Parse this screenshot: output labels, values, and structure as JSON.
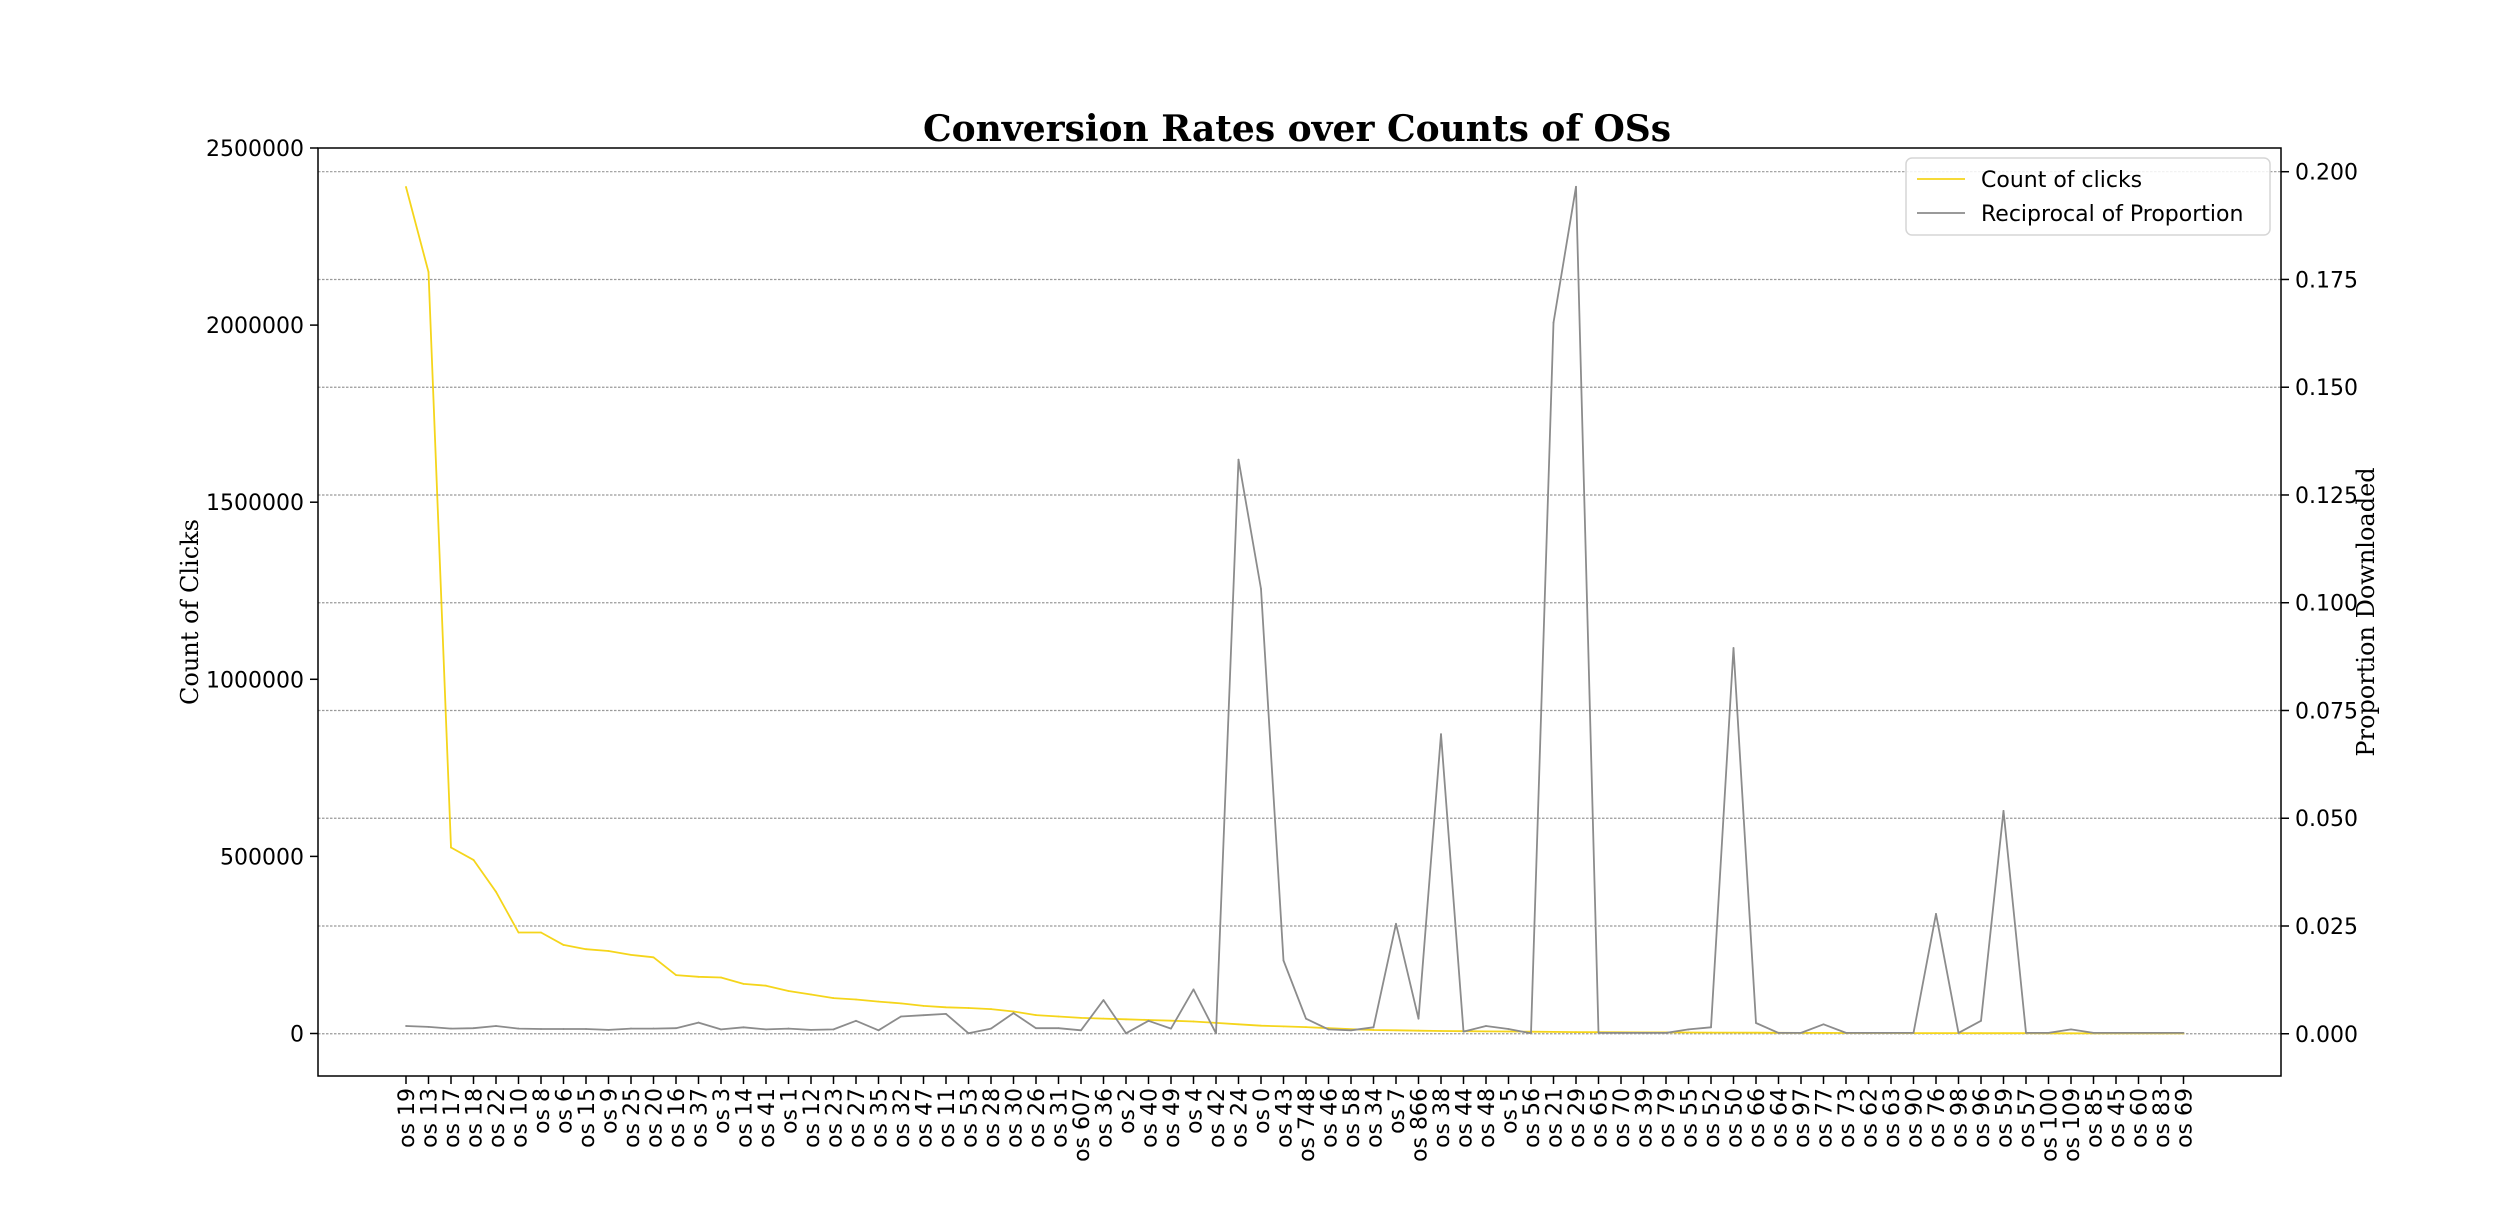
{
  "chart_data": {
    "type": "line",
    "title": "Conversion Rates over Counts of OSs",
    "xlabel": "",
    "ylabel": "Count of Clicks",
    "y2label": "Proportion Downloaded",
    "ylim": [
      -120000,
      2500000
    ],
    "y2lim": [
      -0.0098,
      0.2055
    ],
    "grid": "horizontal (right axis)",
    "legend_position": "top-right",
    "categories": [
      "os 19",
      "os 13",
      "os 17",
      "os 18",
      "os 22",
      "os 10",
      "os 8",
      "os 6",
      "os 15",
      "os 9",
      "os 25",
      "os 20",
      "os 16",
      "os 37",
      "os 3",
      "os 14",
      "os 41",
      "os 1",
      "os 12",
      "os 23",
      "os 27",
      "os 35",
      "os 32",
      "os 47",
      "os 11",
      "os 53",
      "os 28",
      "os 30",
      "os 26",
      "os 31",
      "os 607",
      "os 36",
      "os 2",
      "os 40",
      "os 49",
      "os 4",
      "os 42",
      "os 24",
      "os 0",
      "os 43",
      "os 748",
      "os 46",
      "os 58",
      "os 34",
      "os 7",
      "os 866",
      "os 38",
      "os 44",
      "os 48",
      "os 5",
      "os 56",
      "os 21",
      "os 29",
      "os 65",
      "os 70",
      "os 39",
      "os 79",
      "os 55",
      "os 52",
      "os 50",
      "os 66",
      "os 64",
      "os 97",
      "os 77",
      "os 73",
      "os 62",
      "os 63",
      "os 90",
      "os 76",
      "os 98",
      "os 96",
      "os 59",
      "os 57",
      "os 100",
      "os 109",
      "os 85",
      "os 45",
      "os 60",
      "os 83",
      "os 69"
    ],
    "y_ticks": [
      "0",
      "500000",
      "1000000",
      "1500000",
      "2000000",
      "2500000"
    ],
    "y2_ticks": [
      "0.000",
      "0.025",
      "0.050",
      "0.075",
      "0.100",
      "0.125",
      "0.150",
      "0.175",
      "0.200"
    ],
    "series": [
      {
        "name": "Count of clicks",
        "axis": "left",
        "color": "#f5d51b",
        "values": [
          2390000,
          2150000,
          525000,
          490000,
          400000,
          285000,
          285000,
          250000,
          238000,
          233000,
          222000,
          215000,
          165000,
          160000,
          158000,
          140000,
          135000,
          120000,
          110000,
          100000,
          96000,
          90000,
          85000,
          78000,
          74000,
          72000,
          69000,
          62000,
          52000,
          48000,
          44000,
          42000,
          40000,
          38000,
          36000,
          34000,
          30000,
          26000,
          22000,
          20000,
          18000,
          15000,
          12000,
          10000,
          9000,
          8000,
          7000,
          6500,
          6000,
          5500,
          5000,
          4500,
          4000,
          3800,
          3500,
          3200,
          3000,
          2800,
          2600,
          2400,
          2200,
          2000,
          1800,
          1600,
          1500,
          1400,
          1300,
          1200,
          1100,
          1000,
          900,
          800,
          700,
          600,
          500,
          400,
          300,
          250,
          200,
          150
        ]
      },
      {
        "name": "Reciprocal of Proportion",
        "axis": "right",
        "color": "#8c8c8c",
        "values": [
          0.0018,
          0.0016,
          0.0012,
          0.0013,
          0.0018,
          0.0012,
          0.0011,
          0.0011,
          0.0011,
          0.0009,
          0.0012,
          0.0012,
          0.0013,
          0.0026,
          0.001,
          0.0015,
          0.001,
          0.0012,
          0.0009,
          0.001,
          0.003,
          0.0008,
          0.004,
          0.0043,
          0.0046,
          0.0001,
          0.0012,
          0.0048,
          0.0013,
          0.0013,
          0.0008,
          0.0078,
          0.0001,
          0.003,
          0.0012,
          0.0103,
          0.0001,
          0.1332,
          0.1032,
          0.017,
          0.0035,
          0.001,
          0.0008,
          0.0015,
          0.0255,
          0.0035,
          0.0695,
          0.0005,
          0.0018,
          0.0011,
          0.0001,
          0.165,
          0.1965,
          0.0002,
          0.0002,
          0.0002,
          0.0002,
          0.001,
          0.0015,
          0.0895,
          0.0025,
          0.0002,
          0.0002,
          0.0022,
          0.0002,
          0.0002,
          0.0002,
          0.0002,
          0.0278,
          0.0002,
          0.003,
          0.0517,
          0.0002,
          0.0002,
          0.001,
          0.0002,
          0.0002,
          0.0002,
          0.0002,
          0.0002
        ]
      }
    ]
  }
}
